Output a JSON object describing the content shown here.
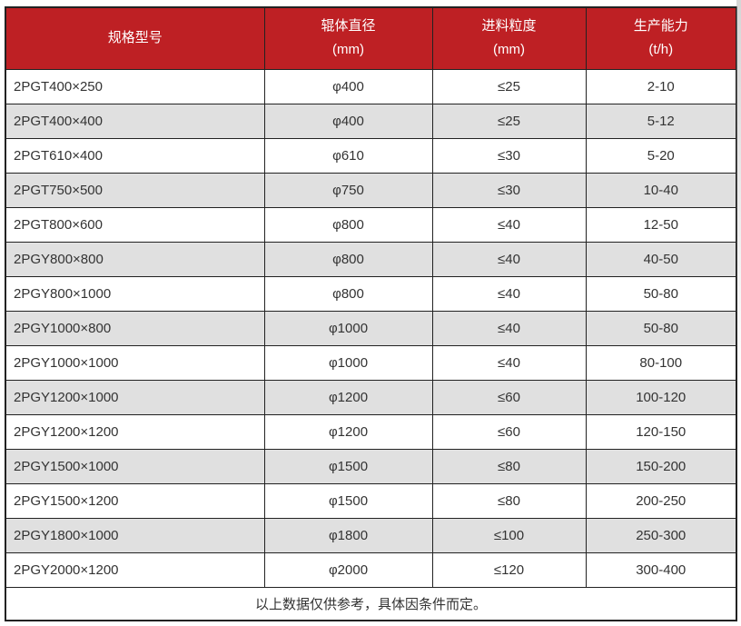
{
  "chart_data": {
    "type": "table",
    "columns": [
      {
        "label": "规格型号",
        "sub": ""
      },
      {
        "label": "辊体直径",
        "sub": "(mm)"
      },
      {
        "label": "进料粒度",
        "sub": "(mm)"
      },
      {
        "label": "生产能力",
        "sub": "(t/h)"
      }
    ],
    "rows": [
      [
        "2PGT400×250",
        "φ400",
        "≤25",
        "2-10"
      ],
      [
        "2PGT400×400",
        "φ400",
        "≤25",
        "5-12"
      ],
      [
        "2PGT610×400",
        "φ610",
        "≤30",
        "5-20"
      ],
      [
        "2PGT750×500",
        "φ750",
        "≤30",
        "10-40"
      ],
      [
        "2PGT800×600",
        "φ800",
        "≤40",
        "12-50"
      ],
      [
        "2PGY800×800",
        "φ800",
        "≤40",
        "40-50"
      ],
      [
        "2PGY800×1000",
        "φ800",
        "≤40",
        "50-80"
      ],
      [
        "2PGY1000×800",
        "φ1000",
        "≤40",
        "50-80"
      ],
      [
        "2PGY1000×1000",
        "φ1000",
        "≤40",
        "80-100"
      ],
      [
        "2PGY1200×1000",
        "φ1200",
        "≤60",
        "100-120"
      ],
      [
        "2PGY1200×1200",
        "φ1200",
        "≤60",
        "120-150"
      ],
      [
        "2PGY1500×1000",
        "φ1500",
        "≤80",
        "150-200"
      ],
      [
        "2PGY1500×1200",
        "φ1500",
        "≤80",
        "200-250"
      ],
      [
        "2PGY1800×1000",
        "φ1800",
        "≤100",
        "250-300"
      ],
      [
        "2PGY2000×1200",
        "φ2000",
        "≤120",
        "300-400"
      ]
    ],
    "footer_note": "以上数据仅供参考，具体因条件而定。"
  },
  "colors": {
    "header_bg": "#be2024",
    "header_text": "#ffffff",
    "row_bg": "#ffffff",
    "row_alt_bg": "#e0e0e0",
    "border": "#222222",
    "body_text": "#333333"
  }
}
